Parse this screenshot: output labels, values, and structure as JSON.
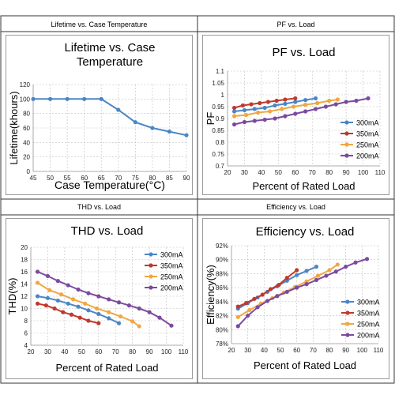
{
  "headers": {
    "h1": "Lifetime vs. Case Temperature",
    "h2": "PF vs. Load",
    "h3": "THD vs. Load",
    "h4": "Efficiency vs. Load"
  },
  "colors": {
    "blue": "#4a86c6",
    "red": "#c0392b",
    "orange": "#f0a741",
    "purple": "#7b4a9e",
    "grid": "#bfbfbf"
  },
  "chart_data": [
    {
      "id": "lifetime",
      "type": "line",
      "title": "Lifetime vs. Case Temperature",
      "xlabel": "Case Temperature(°C)",
      "ylabel": "Lifetime(khours)",
      "xlim": [
        45,
        90
      ],
      "ylim": [
        0,
        120
      ],
      "xticks": [
        45,
        50,
        55,
        60,
        65,
        70,
        75,
        80,
        85,
        90
      ],
      "yticks": [
        0,
        20,
        40,
        60,
        80,
        100,
        120
      ],
      "grid": true,
      "series": [
        {
          "color": "blue",
          "x": [
            45,
            50,
            55,
            60,
            65,
            70,
            75,
            80,
            85,
            90
          ],
          "y": [
            100,
            100,
            100,
            100,
            100,
            85,
            68,
            60,
            55,
            50
          ]
        }
      ]
    },
    {
      "id": "pf",
      "type": "line",
      "title": "PF vs. Load",
      "xlabel": "Percent of Rated Load",
      "ylabel": "PF",
      "xlim": [
        20,
        110
      ],
      "ylim": [
        0.7,
        1.1
      ],
      "xticks": [
        20,
        30,
        40,
        50,
        60,
        70,
        80,
        90,
        100,
        110
      ],
      "yticks": [
        0.7,
        0.75,
        0.8,
        0.85,
        0.9,
        0.95,
        1,
        1.05,
        1.1
      ],
      "ytick_labels": [
        "0.7",
        "0.75",
        "0.8",
        "0.85",
        "0.9",
        "0.95",
        "1",
        "1.05",
        "1.1"
      ],
      "grid": true,
      "legend": "right",
      "series": [
        {
          "name": "300mA",
          "color": "blue",
          "x": [
            24,
            30,
            36,
            42,
            48,
            54,
            60,
            66,
            72
          ],
          "y": [
            0.93,
            0.935,
            0.94,
            0.945,
            0.955,
            0.962,
            0.97,
            0.978,
            0.985
          ]
        },
        {
          "name": "350mA",
          "color": "red",
          "x": [
            24,
            29,
            34,
            39,
            44,
            49,
            54,
            60
          ],
          "y": [
            0.945,
            0.955,
            0.96,
            0.965,
            0.97,
            0.975,
            0.98,
            0.985
          ]
        },
        {
          "name": "250mA",
          "color": "orange",
          "x": [
            24,
            31,
            38,
            45,
            52,
            59,
            66,
            73,
            80,
            85
          ],
          "y": [
            0.91,
            0.915,
            0.925,
            0.93,
            0.94,
            0.95,
            0.958,
            0.965,
            0.975,
            0.98
          ]
        },
        {
          "name": "200mA",
          "color": "purple",
          "x": [
            24,
            30,
            36,
            42,
            48,
            54,
            60,
            66,
            72,
            78,
            84,
            90,
            96,
            103
          ],
          "y": [
            0.875,
            0.885,
            0.89,
            0.895,
            0.9,
            0.91,
            0.92,
            0.93,
            0.94,
            0.95,
            0.96,
            0.97,
            0.975,
            0.985
          ]
        }
      ]
    },
    {
      "id": "thd",
      "type": "line",
      "title": "THD vs. Load",
      "xlabel": "Percent of Rated Load",
      "ylabel": "THD(%)",
      "xlim": [
        20,
        110
      ],
      "ylim": [
        4,
        20
      ],
      "xticks": [
        20,
        30,
        40,
        50,
        60,
        70,
        80,
        90,
        100,
        110
      ],
      "yticks": [
        4,
        6,
        8,
        10,
        12,
        14,
        16,
        18,
        20
      ],
      "grid": true,
      "legend": "top-right",
      "series": [
        {
          "name": "300mA",
          "color": "blue",
          "x": [
            24,
            30,
            36,
            42,
            48,
            54,
            60,
            66,
            72
          ],
          "y": [
            12,
            11.7,
            11.3,
            10.8,
            10.3,
            9.7,
            9.1,
            8.4,
            7.6
          ]
        },
        {
          "name": "350mA",
          "color": "red",
          "x": [
            24,
            29,
            34,
            39,
            44,
            49,
            54,
            60
          ],
          "y": [
            10.8,
            10.5,
            10,
            9.4,
            9,
            8.5,
            8,
            7.6
          ]
        },
        {
          "name": "250mA",
          "color": "orange",
          "x": [
            24,
            31,
            38,
            45,
            52,
            59,
            66,
            73,
            80,
            84
          ],
          "y": [
            14.2,
            13,
            12.3,
            11.5,
            10.8,
            10,
            9.4,
            8.7,
            7.9,
            7.1
          ]
        },
        {
          "name": "200mA",
          "color": "purple",
          "x": [
            24,
            30,
            36,
            42,
            48,
            54,
            60,
            66,
            72,
            78,
            84,
            90,
            96,
            103
          ],
          "y": [
            16,
            15.3,
            14.5,
            13.8,
            13.1,
            12.5,
            12,
            11.5,
            11,
            10.5,
            10,
            9.4,
            8.5,
            7.2
          ]
        }
      ]
    },
    {
      "id": "efficiency",
      "type": "line",
      "title": "Efficiency vs. Load",
      "xlabel": "Percent of Rated Load",
      "ylabel": "Efficiency(%)",
      "xlim": [
        20,
        110
      ],
      "ylim": [
        78,
        92
      ],
      "xticks": [
        20,
        30,
        40,
        50,
        60,
        70,
        80,
        90,
        100,
        110
      ],
      "yticks": [
        78,
        80,
        82,
        84,
        86,
        88,
        90,
        92
      ],
      "ytick_labels": [
        "78%",
        "80%",
        "82%",
        "84%",
        "86%",
        "88%",
        "90%",
        "92%"
      ],
      "grid": true,
      "legend": "right",
      "series": [
        {
          "name": "300mA",
          "color": "blue",
          "x": [
            24,
            30,
            36,
            42,
            48,
            54,
            60,
            66,
            72
          ],
          "y": [
            83,
            83.8,
            84.6,
            85.4,
            86.2,
            87,
            87.8,
            88.4,
            89
          ]
        },
        {
          "name": "350mA",
          "color": "red",
          "x": [
            24,
            29,
            34,
            39,
            44,
            49,
            54,
            60
          ],
          "y": [
            83.3,
            83.8,
            84.4,
            85,
            85.8,
            86.4,
            87.4,
            88.5
          ]
        },
        {
          "name": "250mA",
          "color": "orange",
          "x": [
            24,
            31,
            38,
            45,
            52,
            59,
            66,
            73,
            80,
            85
          ],
          "y": [
            81.8,
            82.8,
            83.7,
            84.5,
            85.3,
            86.1,
            86.9,
            87.7,
            88.5,
            89.3
          ]
        },
        {
          "name": "200mA",
          "color": "purple",
          "x": [
            24,
            30,
            36,
            42,
            48,
            54,
            60,
            66,
            72,
            78,
            84,
            90,
            96,
            103
          ],
          "y": [
            80.5,
            82,
            83.2,
            84.1,
            84.8,
            85.4,
            86,
            86.5,
            87.1,
            87.7,
            88.3,
            89,
            89.6,
            90.1
          ]
        }
      ]
    }
  ]
}
